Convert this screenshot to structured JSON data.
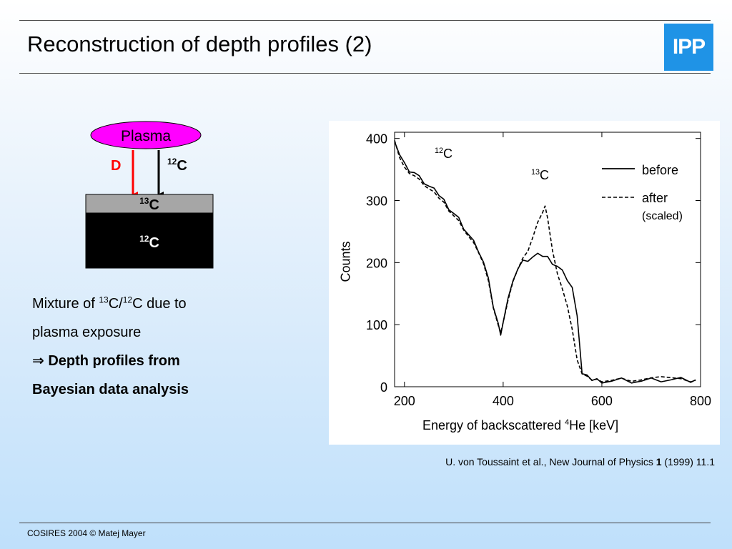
{
  "slide": {
    "title": "Reconstruction of depth profiles (2)",
    "logo_text": "IPP",
    "footer": "COSIRES 2004 © Matej Mayer",
    "citation": {
      "prefix": "U. von Toussaint et al., New Journal of Physics ",
      "volume": "1",
      "suffix": " (1999) 11.1"
    }
  },
  "diagram": {
    "plasma_label": "Plasma",
    "d_label": "D",
    "c12_arrow_mass": "12",
    "c12_arrow_sym": "C",
    "layer_top_mass": "13",
    "layer_top_sym": "C",
    "substrate_mass": "12",
    "substrate_sym": "C",
    "colors": {
      "plasma": "#ff00ff",
      "d_arrow": "#ff0000",
      "layer": "#a6a6a6",
      "substrate": "#000000"
    }
  },
  "text": {
    "line1_a": "Mixture of ",
    "line1_m1": "13",
    "line1_b": "C/",
    "line1_m2": "12",
    "line1_c": "C due to",
    "line2": "plasma exposure",
    "arrow": "⇒",
    "line3": " Depth profiles from",
    "line4": "Bayesian data analysis"
  },
  "chart_data": {
    "type": "line",
    "xlabel_prefix": "Energy of backscattered ",
    "xlabel_sup": "4",
    "xlabel_suffix": "He [keV]",
    "ylabel": "Counts",
    "xlim": [
      180,
      800
    ],
    "ylim": [
      0,
      410
    ],
    "xticks": [
      200,
      400,
      600,
      800
    ],
    "yticks": [
      0,
      100,
      200,
      300,
      400
    ],
    "annotations": [
      {
        "mass": "12",
        "sym": "C"
      },
      {
        "mass": "13",
        "sym": "C"
      }
    ],
    "legend": {
      "before": "before",
      "after": "after",
      "after_note": "(scaled)"
    },
    "series": [
      {
        "name": "before",
        "style": "solid",
        "x": [
          180,
          190,
          200,
          210,
          220,
          230,
          240,
          250,
          260,
          270,
          280,
          290,
          300,
          310,
          320,
          330,
          340,
          350,
          360,
          370,
          380,
          390,
          395,
          400,
          410,
          420,
          430,
          440,
          450,
          460,
          470,
          480,
          490,
          500,
          510,
          520,
          530,
          540,
          550,
          555,
          560,
          570,
          580,
          590,
          600,
          620,
          640,
          660,
          680,
          700,
          720,
          740,
          760,
          780,
          790
        ],
        "y": [
          400,
          375,
          358,
          350,
          345,
          336,
          330,
          322,
          315,
          310,
          300,
          290,
          280,
          270,
          258,
          245,
          232,
          220,
          200,
          170,
          130,
          100,
          88,
          105,
          140,
          175,
          190,
          200,
          205,
          208,
          210,
          212,
          208,
          202,
          195,
          185,
          175,
          160,
          110,
          70,
          20,
          14,
          12,
          11,
          11,
          10,
          11,
          10,
          9,
          10,
          11,
          10,
          10,
          9,
          9
        ]
      },
      {
        "name": "after",
        "style": "dashed",
        "x": [
          180,
          190,
          200,
          210,
          220,
          230,
          240,
          250,
          260,
          270,
          280,
          290,
          300,
          310,
          320,
          330,
          340,
          350,
          360,
          370,
          380,
          390,
          395,
          400,
          410,
          420,
          430,
          440,
          450,
          460,
          470,
          480,
          485,
          490,
          500,
          510,
          520,
          530,
          540,
          550,
          560,
          570,
          580,
          590,
          600,
          620,
          640,
          660,
          680,
          700,
          720,
          740,
          760,
          780,
          790
        ],
        "y": [
          400,
          370,
          352,
          346,
          340,
          332,
          326,
          318,
          311,
          305,
          296,
          286,
          276,
          266,
          255,
          242,
          230,
          218,
          198,
          168,
          128,
          98,
          90,
          104,
          138,
          172,
          190,
          205,
          220,
          240,
          262,
          282,
          290,
          275,
          220,
          180,
          160,
          130,
          90,
          45,
          20,
          14,
          12,
          11,
          11,
          11,
          12,
          11,
          11,
          12,
          18,
          14,
          10,
          9,
          9
        ]
      }
    ]
  }
}
